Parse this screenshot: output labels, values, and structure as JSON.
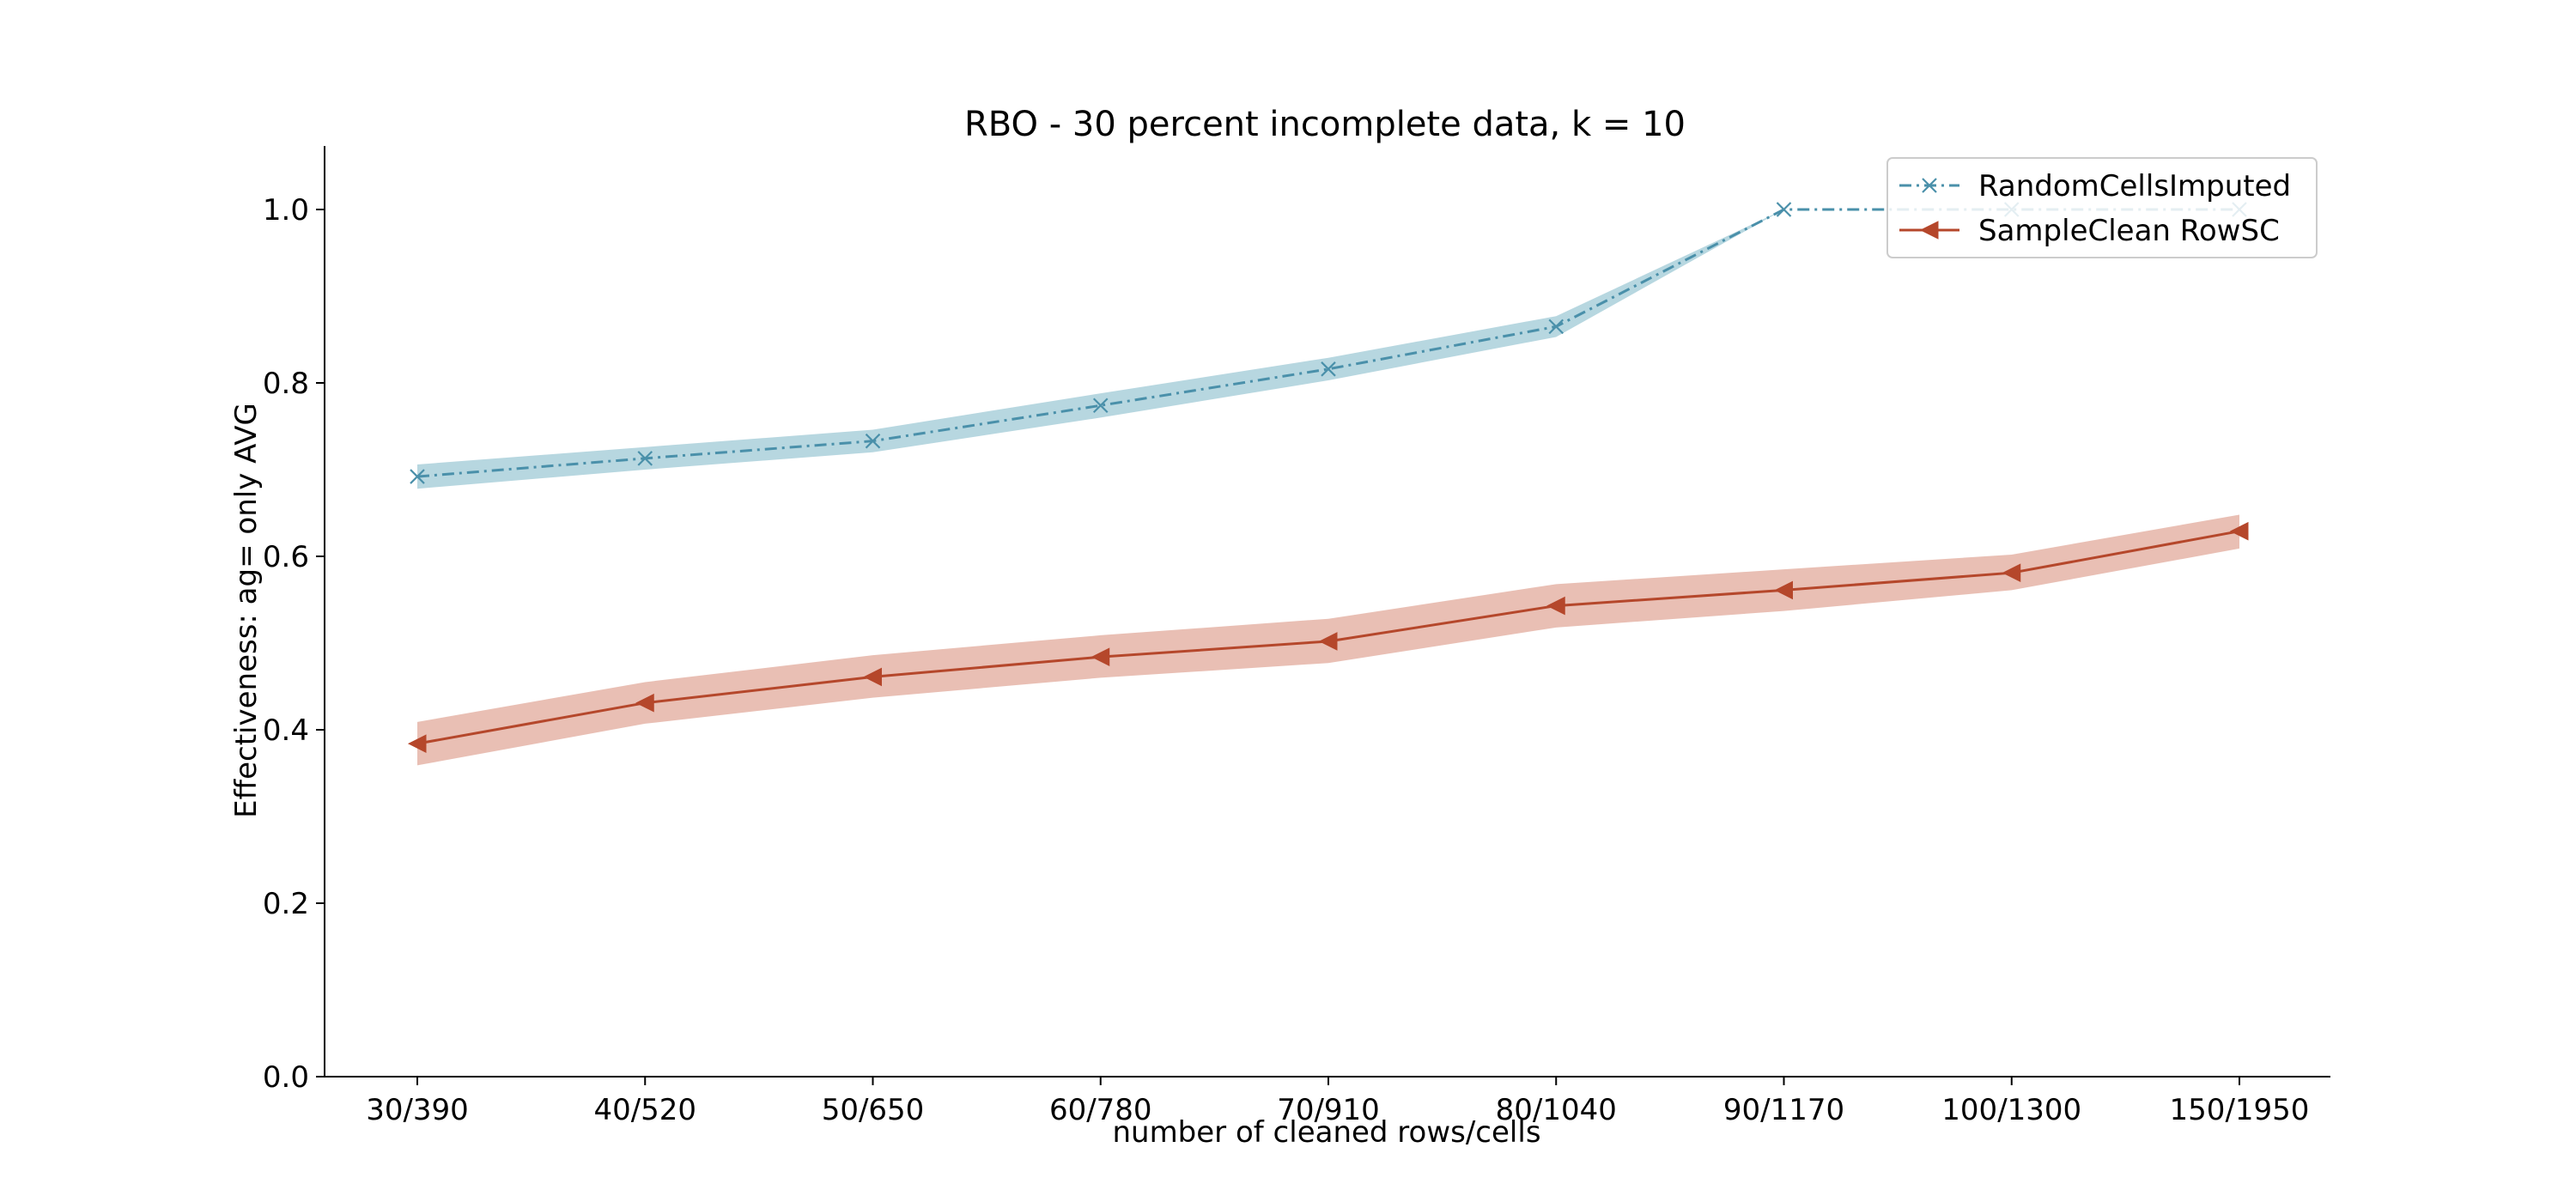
{
  "chart_data": {
    "type": "line",
    "title": "RBO - 30 percent incomplete data, k = 10",
    "xlabel": "number of cleaned rows/cells",
    "ylabel": "Effectiveness: ag= only AVG",
    "categories": [
      "30/390",
      "40/520",
      "50/650",
      "60/780",
      "70/910",
      "80/1040",
      "90/1170",
      "100/1300",
      "150/1950"
    ],
    "ylim": [
      0.0,
      1.0
    ],
    "yticks": [
      "0.0",
      "0.2",
      "0.4",
      "0.6",
      "0.8",
      "1.0"
    ],
    "grid": false,
    "legend_position": "top-right",
    "series": [
      {
        "name": "RandomCellsImputed",
        "color": "#4a90aa",
        "band_color": "#9fcad6",
        "line_style": "dash-dot",
        "marker": "x",
        "values": [
          0.692,
          0.713,
          0.733,
          0.774,
          0.816,
          0.865,
          1.0,
          1.0,
          1.0
        ],
        "lower": [
          0.678,
          0.7,
          0.72,
          0.76,
          0.803,
          0.853,
          1.0,
          1.0,
          1.0
        ],
        "upper": [
          0.706,
          0.726,
          0.746,
          0.788,
          0.829,
          0.877,
          1.0,
          1.0,
          1.0
        ]
      },
      {
        "name": "SampleClean RowSC",
        "color": "#b5472b",
        "band_color": "#e2aa9b",
        "line_style": "solid",
        "marker": "triangle-left",
        "values": [
          0.384,
          0.431,
          0.461,
          0.484,
          0.502,
          0.543,
          0.561,
          0.581,
          0.629
        ],
        "lower": [
          0.359,
          0.407,
          0.437,
          0.46,
          0.477,
          0.518,
          0.537,
          0.561,
          0.609
        ],
        "upper": [
          0.409,
          0.455,
          0.486,
          0.509,
          0.528,
          0.568,
          0.585,
          0.602,
          0.648
        ]
      }
    ]
  }
}
